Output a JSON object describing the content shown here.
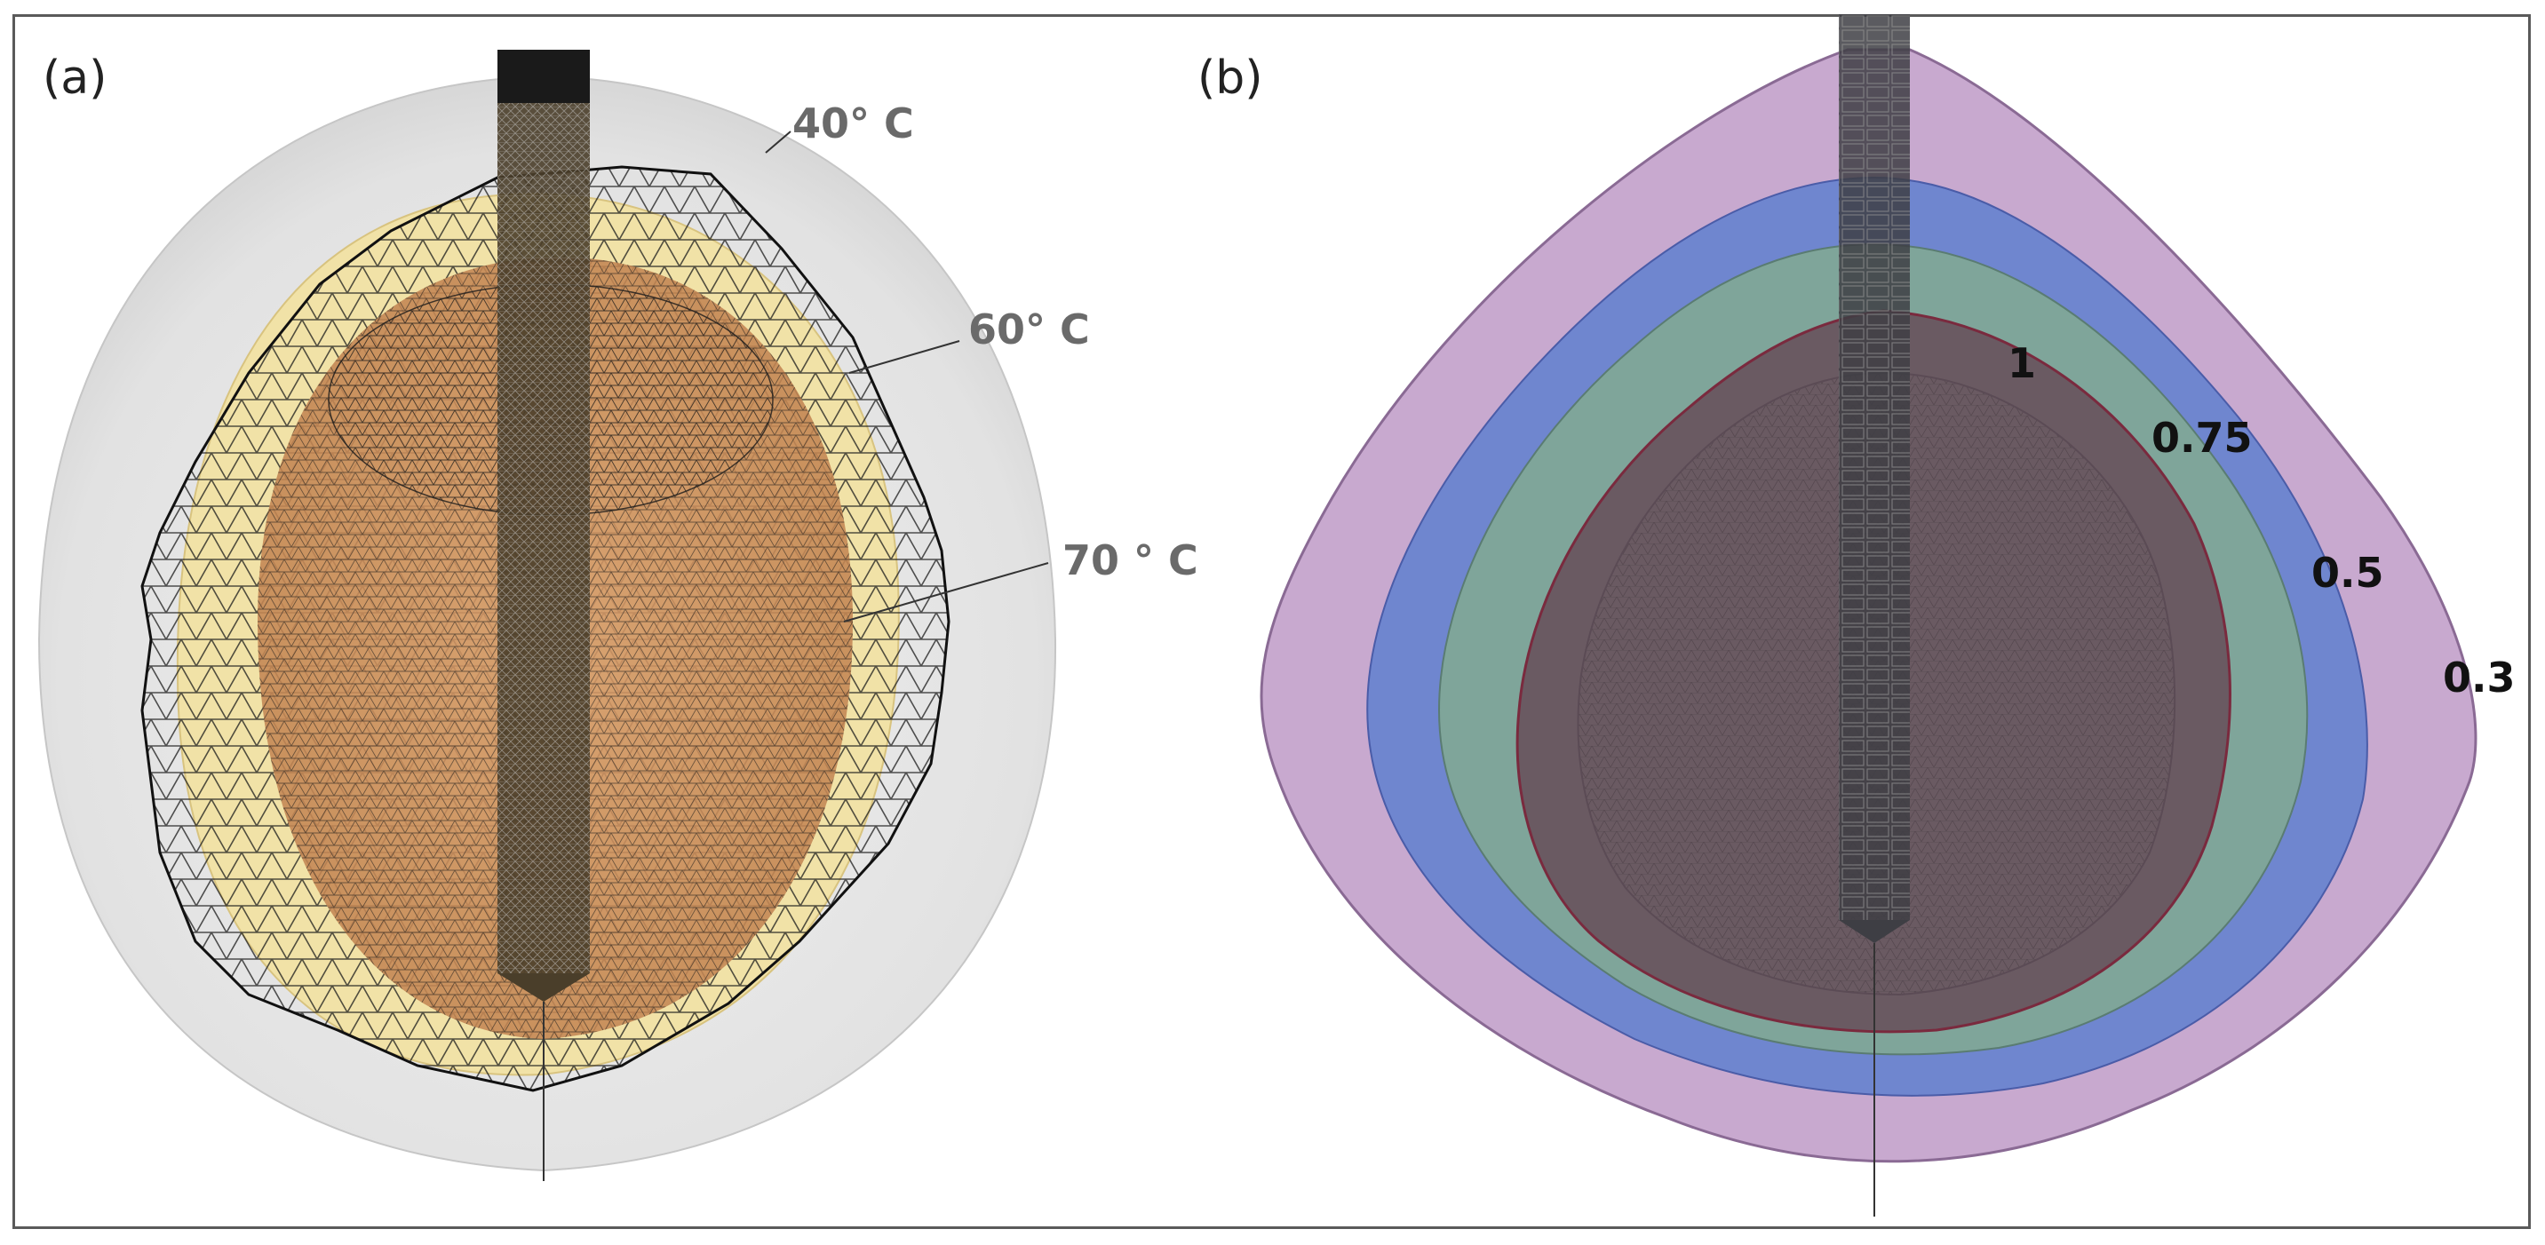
{
  "panels": [
    {
      "label": "(a)",
      "isotherms": [
        "40° C",
        "60° C",
        "70 ° C"
      ]
    },
    {
      "label": "(b)",
      "contours": [
        "1",
        "0.75",
        "0.5",
        "0.3"
      ]
    }
  ],
  "colors": {
    "shell_40": "#dcdcdc",
    "shell_60": "#f1df9c",
    "core_70": "#c98a5a",
    "mesh": "#1a1a1a",
    "probe": "#4a3e2a",
    "contour_0_3": "#c8a9cf",
    "contour_0_5": "#6f86cf",
    "contour_0_75": "#7fa59a",
    "contour_1": "#6a5a62"
  }
}
